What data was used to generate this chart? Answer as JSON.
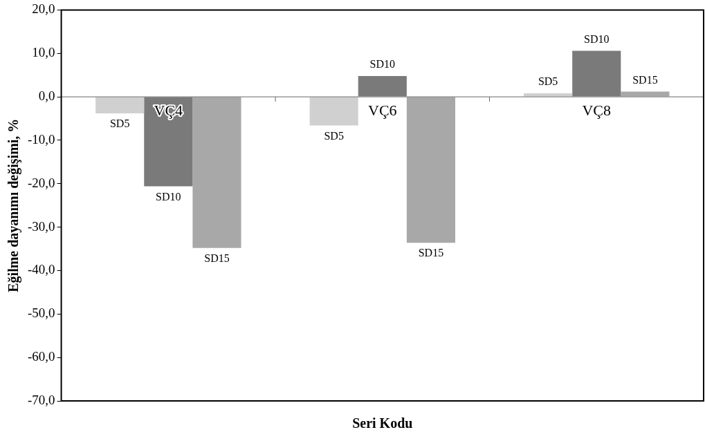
{
  "chart_data": {
    "type": "bar",
    "xlabel": "Seri Kodu",
    "ylabel": "Eğilme dayanımı değişimi, %",
    "categories": [
      "VÇ4",
      "VÇ6",
      "VÇ8"
    ],
    "series": [
      {
        "name": "SD5",
        "color": "#d0d0d0",
        "values": [
          -3.8,
          -6.6,
          0.8
        ]
      },
      {
        "name": "SD10",
        "color": "#7a7a7a",
        "values": [
          -20.6,
          4.8,
          10.6
        ]
      },
      {
        "name": "SD15",
        "color": "#a8a8a8",
        "values": [
          -34.8,
          -33.6,
          1.2
        ]
      }
    ],
    "ylim": [
      -70,
      20
    ],
    "yticks": [
      {
        "value": -70,
        "label": "-70,0"
      },
      {
        "value": -60,
        "label": "-60,0"
      },
      {
        "value": -50,
        "label": "-50,0"
      },
      {
        "value": -40,
        "label": "-40,0"
      },
      {
        "value": -30,
        "label": "-30,0"
      },
      {
        "value": -20,
        "label": "-20,0"
      },
      {
        "value": -10,
        "label": "-10,0"
      },
      {
        "value": 0,
        "label": "0,0"
      },
      {
        "value": 10,
        "label": "10,0"
      },
      {
        "value": 20,
        "label": "20,0"
      }
    ],
    "grid": false,
    "legend": false
  }
}
